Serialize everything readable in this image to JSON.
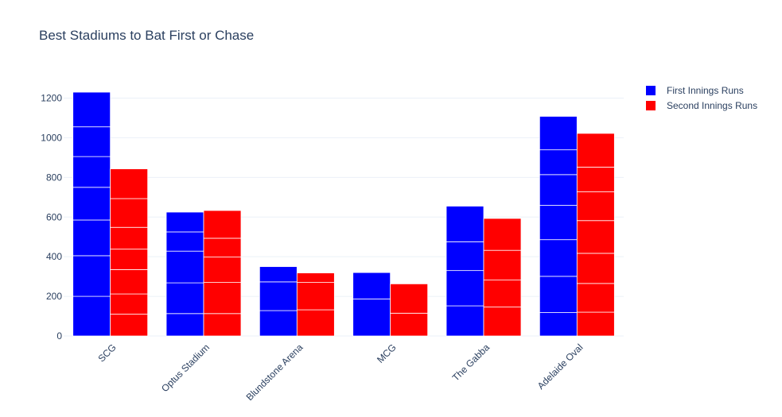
{
  "chart_data": {
    "type": "bar",
    "barmode": "stacked-within-group",
    "title": "Best Stadiums to Bat First or Chase",
    "xlabel": "",
    "ylabel": "",
    "ylim": [
      0,
      1300
    ],
    "y_ticks": [
      0,
      200,
      400,
      600,
      800,
      1000,
      1200
    ],
    "categories": [
      "SCG",
      "Optus Stadium",
      "Blundstone Arena",
      "MCG",
      "The Gabba",
      "Adelaide Oval"
    ],
    "legend_position": "top-right",
    "grid": true,
    "series": [
      {
        "name": "First Innings Runs",
        "color": "#0000ff",
        "totals": [
          1230,
          625,
          350,
          320,
          655,
          1108
        ],
        "segments": [
          [
            200,
            205,
            180,
            165,
            155,
            150,
            175
          ],
          [
            113,
            155,
            160,
            97,
            100
          ],
          [
            128,
            145,
            77
          ],
          [
            187,
            133
          ],
          [
            152,
            178,
            145,
            180
          ],
          [
            118,
            183,
            185,
            173,
            155,
            125,
            169
          ]
        ]
      },
      {
        "name": "Second Innings Runs",
        "color": "#ff0000",
        "totals": [
          843,
          633,
          318,
          263,
          593,
          1022
        ],
        "segments": [
          [
            110,
            102,
            123,
            103,
            110,
            145,
            150
          ],
          [
            113,
            157,
            128,
            95,
            140
          ],
          [
            132,
            138,
            48
          ],
          [
            115,
            148
          ],
          [
            146,
            136,
            150,
            161
          ],
          [
            120,
            145,
            152,
            165,
            145,
            125,
            170
          ]
        ]
      }
    ]
  }
}
